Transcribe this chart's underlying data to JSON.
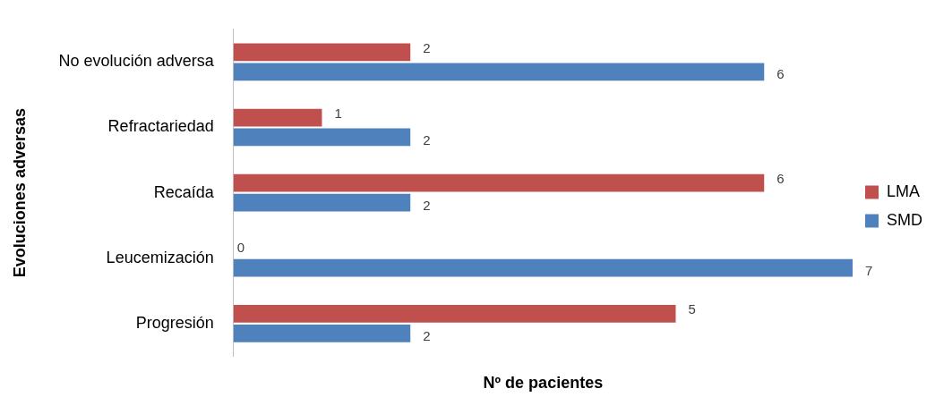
{
  "chart_data": {
    "type": "bar",
    "orientation": "horizontal",
    "xlabel": "Nº de pacientes",
    "ylabel": "Evoluciones adversas",
    "categories": [
      "No evolución adversa",
      "Refractariedad",
      "Recaída",
      "Leucemización",
      "Progresión"
    ],
    "series": [
      {
        "name": "LMA",
        "color": "#c0504d",
        "values": [
          2,
          1,
          6,
          0,
          5
        ]
      },
      {
        "name": "SMD",
        "color": "#4f81bd",
        "values": [
          6,
          2,
          2,
          7,
          2
        ]
      }
    ],
    "xlim": [
      0,
      7
    ],
    "tick_labels": "y",
    "grid": false,
    "legend": "right",
    "data_labels": true
  }
}
